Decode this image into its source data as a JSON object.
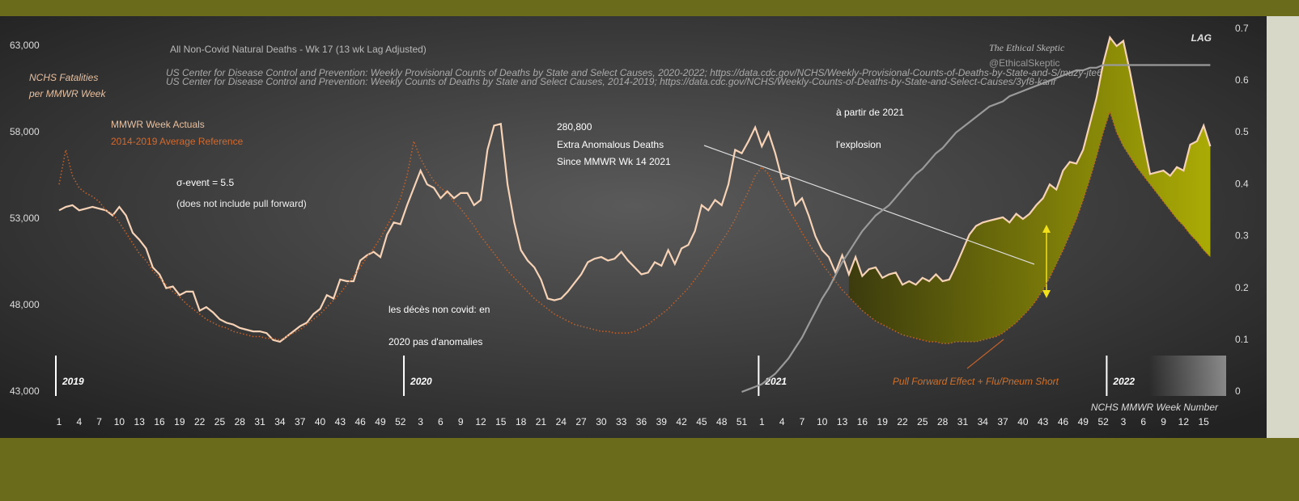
{
  "chart_data": {
    "type": "line",
    "title": "All Non-Covid Natural Deaths - Wk 17 (13 wk Lag Adjusted)",
    "subtitle": [
      "US Center for Disease Control and Prevention: Weekly  Provisional Counts of Deaths by State and Select Causes, 2020-2022; https://data.cdc.gov/NCHS/Weekly-Provisional-Counts-of-Deaths-by-State-and-S/muzy-jte6",
      "US Center for Disease Control and Prevention: Weekly  Counts of Deaths by State and Select Causes, 2014-2019; https://data.cdc.gov/NCHS/Weekly-Counts-of-Deaths-by-State-and-Select-Causes/3yf8-kanr"
    ],
    "x_label": "NCHS MMWR Week Number",
    "year_labels": [
      "2019",
      "2020",
      "2021",
      "2022"
    ],
    "annotations": [
      "NCHS Fatalities",
      "per MMWR Week",
      "σ-event = 5.5",
      "(does not include pull forward)",
      "280,800",
      "Extra Anomalous Deaths",
      "Since MMWR Wk 14 2021",
      "The Ethical Skeptic",
      "@EthicalSkeptic",
      "LAG",
      "Pull Forward Effect + Flu/Pneum Short",
      "les décès non covid: en",
      "2020 pas d'anomalies",
      "à partir de 2021",
      "l'explosion"
    ],
    "categories": [
      1,
      null,
      null,
      4,
      null,
      null,
      7,
      null,
      null,
      10,
      null,
      null,
      13,
      null,
      null,
      16,
      null,
      null,
      19,
      null,
      null,
      22,
      null,
      null,
      25,
      null,
      null,
      28,
      null,
      null,
      31,
      null,
      null,
      34,
      null,
      null,
      37,
      null,
      null,
      40,
      null,
      null,
      43,
      null,
      null,
      46,
      null,
      null,
      49,
      null,
      null,
      52,
      null,
      null,
      3,
      null,
      null,
      6,
      null,
      null,
      9,
      null,
      null,
      12,
      null,
      null,
      15,
      null,
      null,
      18,
      null,
      null,
      21,
      null,
      null,
      24,
      null,
      null,
      27,
      null,
      null,
      30,
      null,
      null,
      33,
      null,
      null,
      36,
      null,
      null,
      39,
      null,
      null,
      42,
      null,
      null,
      45,
      null,
      null,
      48,
      null,
      null,
      51,
      null,
      null,
      1,
      null,
      null,
      4,
      null,
      null,
      7,
      null,
      null,
      10,
      null,
      null,
      13,
      null,
      null,
      16,
      null,
      null,
      19,
      null,
      null,
      22,
      null,
      null,
      25,
      null,
      null,
      28,
      null,
      null,
      31,
      null,
      null,
      34,
      null,
      null,
      37,
      null,
      null,
      40,
      null,
      null,
      43,
      null,
      null,
      46,
      null,
      null,
      49,
      null,
      null,
      52,
      null,
      null,
      3,
      null,
      null,
      6,
      null,
      null,
      9,
      null,
      null,
      12,
      null,
      null,
      15,
      null
    ],
    "series": [
      {
        "name": "MMWR Week Actuals",
        "color": "#f6d2b6",
        "style": "solid",
        "values": [
          53500,
          53700,
          53800,
          53500,
          53600,
          53700,
          53600,
          53500,
          53200,
          53700,
          53200,
          52200,
          51800,
          51300,
          50200,
          49800,
          49000,
          49100,
          48600,
          48800,
          48800,
          47700,
          47900,
          47600,
          47200,
          47000,
          46900,
          46700,
          46600,
          46500,
          46500,
          46400,
          46000,
          45900,
          46200,
          46500,
          46800,
          47000,
          47500,
          47800,
          48600,
          48400,
          49500,
          49400,
          49400,
          50600,
          50900,
          51100,
          50800,
          52100,
          52800,
          52700,
          53800,
          54800,
          55800,
          55000,
          54800,
          54200,
          54600,
          54200,
          54500,
          54500,
          53800,
          54100,
          57000,
          58400,
          58500,
          55000,
          52800,
          51200,
          50600,
          50200,
          49500,
          48400,
          48300,
          48400,
          48800,
          49300,
          49800,
          50500,
          50700,
          50800,
          50600,
          50700,
          51100,
          50600,
          50200,
          49800,
          49900,
          50500,
          50300,
          51200,
          50400,
          51300,
          51500,
          52300,
          53800,
          53500,
          54100,
          53800,
          55000,
          57000,
          56800,
          57500,
          58300,
          57200,
          58000,
          56800,
          55300,
          55400,
          53800,
          54200,
          53200,
          52000,
          51200,
          50800,
          49900,
          50900,
          49800,
          50800,
          49700,
          50100,
          50200,
          49600,
          49800,
          49900,
          49200,
          49400,
          49200,
          49600,
          49400,
          49800,
          49400,
          49500,
          50300,
          51200,
          52100,
          52600,
          52800,
          52900,
          53000,
          53100,
          52800,
          53300,
          53000,
          53300,
          53800,
          54200,
          55000,
          54700,
          55800,
          56300,
          56200,
          57000,
          58500,
          60000,
          62000,
          63500,
          63000,
          63300,
          61500,
          59500,
          57500,
          55600,
          55700,
          55800,
          55500,
          56000,
          55800,
          57300,
          57500,
          58400,
          57200
        ]
      },
      {
        "name": "2014-2019 Average Reference",
        "color": "#c0602a",
        "style": "dotted",
        "values": [
          55000,
          57000,
          55500,
          54800,
          54500,
          54300,
          54000,
          53500,
          53300,
          52800,
          52200,
          51600,
          51000,
          50600,
          50000,
          49600,
          49200,
          48800,
          48500,
          48100,
          47800,
          47500,
          47200,
          47000,
          46800,
          46700,
          46500,
          46400,
          46300,
          46200,
          46200,
          46100,
          46100,
          46000,
          46200,
          46400,
          46600,
          46900,
          47200,
          47500,
          47900,
          48300,
          48700,
          49200,
          49700,
          50200,
          50800,
          51300,
          51900,
          52600,
          53300,
          54200,
          55500,
          57500,
          56500,
          55800,
          55200,
          54800,
          54500,
          54000,
          53600,
          53100,
          52600,
          52000,
          51500,
          51000,
          50500,
          50000,
          49600,
          49200,
          48800,
          48400,
          48100,
          47800,
          47500,
          47300,
          47100,
          46900,
          46800,
          46700,
          46600,
          46500,
          46500,
          46400,
          46400,
          46400,
          46500,
          46700,
          46900,
          47200,
          47500,
          47800,
          48200,
          48600,
          49000,
          49500,
          50000,
          50600,
          51100,
          51700,
          52300,
          53000,
          53800,
          54600,
          55500,
          56000,
          55600,
          54800,
          54200,
          53500,
          52900,
          52200,
          51600,
          51000,
          50400,
          49900,
          49400,
          48900,
          48500,
          48100,
          47700,
          47400,
          47100,
          46900,
          46700,
          46500,
          46300,
          46200,
          46100,
          46000,
          45900,
          45900,
          45800,
          45800,
          45900,
          45900,
          45900,
          45900,
          46000,
          46100,
          46200,
          46400,
          46700,
          47000,
          47400,
          47800,
          48300,
          48900,
          49600,
          50400,
          51200,
          52100,
          53000,
          54100,
          55300,
          56600,
          58000,
          59200,
          58000,
          57200,
          56600,
          56000,
          55500,
          55000,
          54500,
          54000,
          53500,
          53000,
          52600,
          52100,
          51700,
          51200,
          50800
        ]
      },
      {
        "color": "#9a9a9a",
        "style": "solid",
        "axis": "y2",
        "values": [
          null,
          null,
          null,
          null,
          null,
          null,
          null,
          null,
          null,
          null,
          null,
          null,
          null,
          null,
          null,
          null,
          null,
          null,
          null,
          null,
          null,
          null,
          null,
          null,
          null,
          null,
          null,
          null,
          null,
          null,
          null,
          null,
          null,
          null,
          null,
          null,
          null,
          null,
          null,
          null,
          null,
          null,
          null,
          null,
          null,
          null,
          null,
          null,
          null,
          null,
          null,
          null,
          null,
          null,
          null,
          null,
          null,
          null,
          null,
          null,
          null,
          null,
          null,
          null,
          null,
          null,
          null,
          null,
          null,
          null,
          null,
          null,
          null,
          null,
          null,
          null,
          null,
          null,
          null,
          null,
          null,
          null,
          null,
          null,
          null,
          null,
          null,
          null,
          null,
          null,
          null,
          null,
          null,
          null,
          null,
          null,
          null,
          null,
          null,
          null,
          null,
          null,
          0,
          0.005,
          0.01,
          0.015,
          0.025,
          0.035,
          0.05,
          0.065,
          0.085,
          0.105,
          0.13,
          0.155,
          0.18,
          0.2,
          0.225,
          0.25,
          0.27,
          0.29,
          0.31,
          0.325,
          0.34,
          0.35,
          0.36,
          0.375,
          0.39,
          0.405,
          0.42,
          0.43,
          0.445,
          0.46,
          0.47,
          0.485,
          0.5,
          0.51,
          0.52,
          0.53,
          0.54,
          0.55,
          0.555,
          0.56,
          0.57,
          0.575,
          0.58,
          0.585,
          0.59,
          0.595,
          0.6,
          0.605,
          0.61,
          0.615,
          0.62,
          0.62,
          0.625,
          0.625,
          0.63,
          0.63,
          0.63,
          0.63,
          0.63,
          0.63,
          0.63,
          0.63,
          0.63,
          0.63,
          0.63,
          0.63,
          0.63,
          0.63,
          0.63,
          0.63,
          0.63
        ]
      }
    ],
    "ylim": [
      43000,
      64000
    ],
    "yticks": [
      {
        "value": 43000,
        "label": "43,000"
      },
      {
        "value": 48000,
        "label": "48,000"
      },
      {
        "value": 53000,
        "label": "53,000"
      },
      {
        "value": 58000,
        "label": "58,000"
      },
      {
        "value": 63000,
        "label": "63,000"
      }
    ],
    "y2lim": [
      0,
      0.7
    ],
    "y2ticks": [
      0,
      0.1,
      0.2,
      0.3,
      0.4,
      0.5,
      0.6,
      0.7
    ],
    "grid": false
  }
}
